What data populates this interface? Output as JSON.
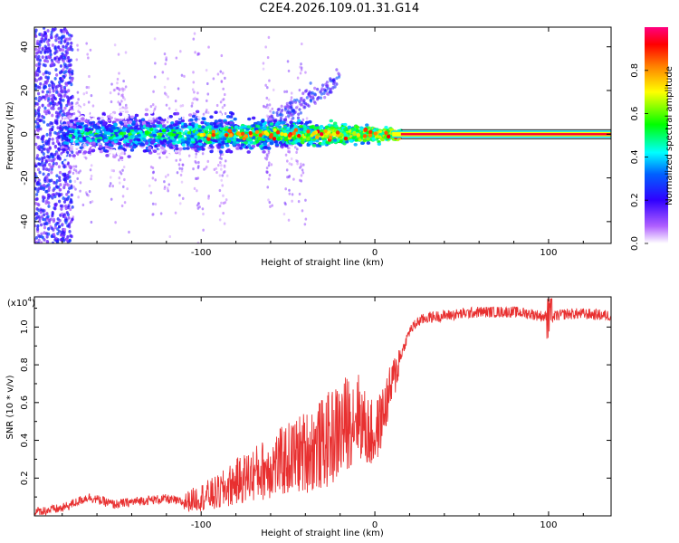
{
  "title": "C2E4.2026.109.01.31.G14",
  "chart_data": [
    {
      "type": "heatmap",
      "name": "spectrogram",
      "xlabel": "Height of straight line (km)",
      "ylabel": "Frequency (Hz)",
      "xlim": [
        -196,
        136
      ],
      "ylim": [
        -50,
        49
      ],
      "x_ticks": [
        "-100",
        "0",
        "100"
      ],
      "x_tick_values": [
        -100,
        0,
        100
      ],
      "y_ticks": [
        "-40",
        "-20",
        "0",
        "20",
        "40"
      ],
      "y_tick_values": [
        -40,
        -20,
        0,
        20,
        40
      ],
      "colorbar": {
        "label": "Normalized spectral amplitude",
        "range": [
          0,
          1
        ],
        "ticks": [
          "0.0",
          "0.2",
          "0.4",
          "0.6",
          "0.8"
        ],
        "tick_values": [
          0,
          0.2,
          0.4,
          0.6,
          0.8
        ],
        "colors": [
          "#ffffff",
          "#7a00ff",
          "#0000ff",
          "#00ffff",
          "#00ff00",
          "#ffff00",
          "#ff8000",
          "#ff0000",
          "#ff0080"
        ]
      },
      "signal": {
        "center_frequency": 0,
        "steady_band_start_km": 15,
        "steady_band_end_km": 136,
        "steady_band_amplitude": 0.95
      }
    },
    {
      "type": "line",
      "name": "snr",
      "xlabel": "Height of straight line (km)",
      "ylabel": "SNR (10 * v/v)",
      "scale_label": "(x10",
      "scale_exponent": "4",
      "scale_suffix": ")",
      "xlim": [
        -196,
        136
      ],
      "ylim": [
        0,
        1.16
      ],
      "x_ticks": [
        "-100",
        "0",
        "100"
      ],
      "x_tick_values": [
        -100,
        0,
        100
      ],
      "y_ticks": [
        "0.2",
        "0.4",
        "0.6",
        "0.8",
        "1.0"
      ],
      "y_tick_values": [
        0.2,
        0.4,
        0.6,
        0.8,
        1.0
      ],
      "color": "#e83030",
      "series": [
        {
          "name": "SNR",
          "x": [
            -196,
            -180,
            -165,
            -150,
            -135,
            -120,
            -110,
            -100,
            -90,
            -80,
            -70,
            -60,
            -50,
            -40,
            -30,
            -20,
            -15,
            -10,
            -5,
            0,
            5,
            10,
            15,
            20,
            25,
            30,
            40,
            50,
            60,
            70,
            80,
            90,
            100,
            110,
            120,
            136
          ],
          "y": [
            0.02,
            0.04,
            0.1,
            0.06,
            0.08,
            0.09,
            0.07,
            0.1,
            0.12,
            0.18,
            0.22,
            0.26,
            0.3,
            0.34,
            0.38,
            0.45,
            0.5,
            0.55,
            0.45,
            0.42,
            0.55,
            0.7,
            0.85,
            0.98,
            1.03,
            1.05,
            1.06,
            1.07,
            1.08,
            1.08,
            1.08,
            1.07,
            1.05,
            1.07,
            1.07,
            1.06
          ]
        }
      ]
    }
  ]
}
